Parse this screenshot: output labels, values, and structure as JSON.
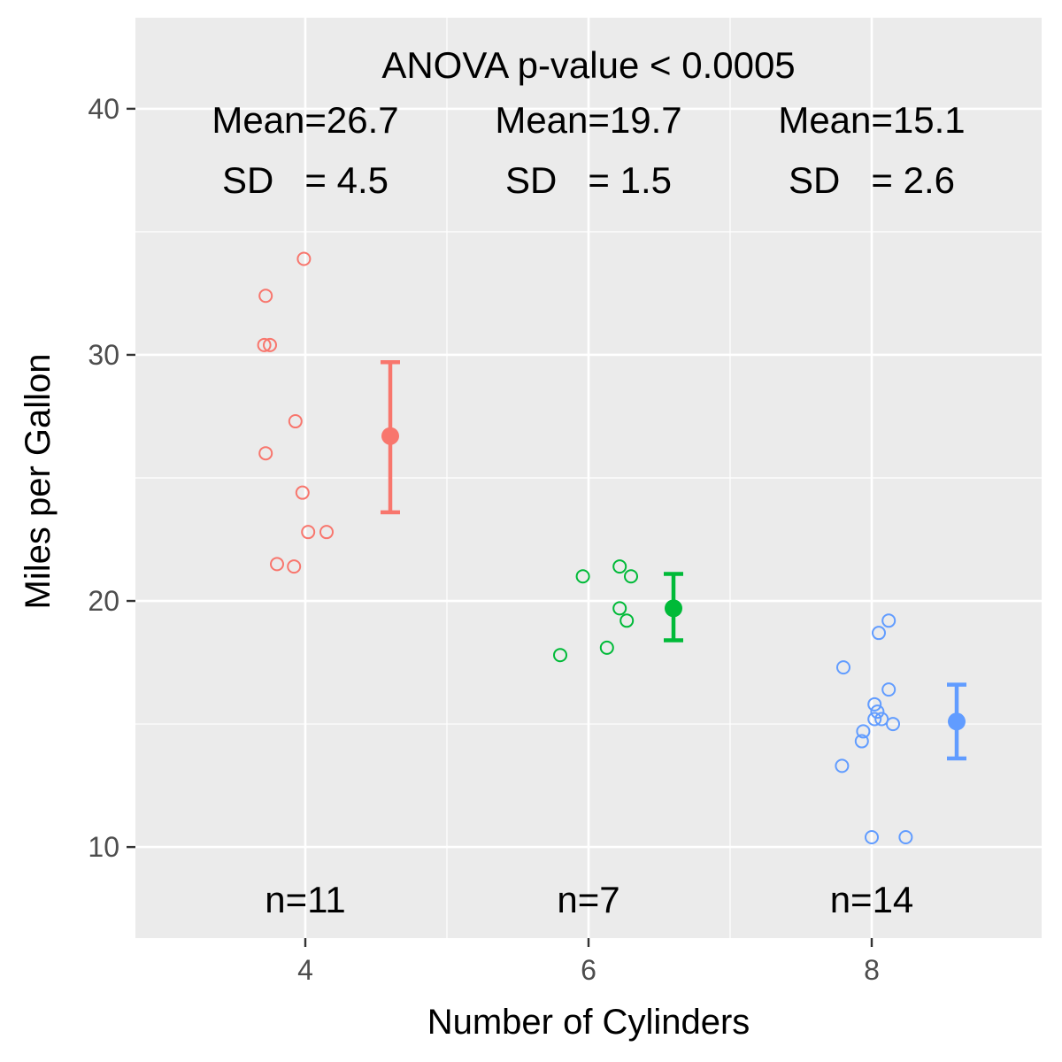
{
  "chart_data": {
    "type": "scatter",
    "title": "",
    "xlabel": "Number of Cylinders",
    "ylabel": "Miles per Gallon",
    "xlim": [
      2.8,
      9.2
    ],
    "ylim": [
      6.3,
      43.7
    ],
    "x_ticks": [
      4,
      6,
      8
    ],
    "y_ticks": [
      10,
      20,
      30,
      40
    ],
    "x_tick_labels": [
      "4",
      "6",
      "8"
    ],
    "y_tick_labels": [
      "10",
      "20",
      "30",
      "40"
    ],
    "grid": true,
    "legend": "none",
    "annotations": {
      "anova": "ANOVA p-value < 0.0005"
    },
    "groups": [
      {
        "name": "4",
        "color": "#F8766D",
        "x": 4,
        "mean": 26.7,
        "sd": 4.5,
        "mean_label": "Mean=26.7",
        "sd_label": "SD   = 4.5",
        "n_label": "n=11",
        "summary_x": 4.6,
        "ci": [
          23.6,
          29.7
        ],
        "points": [
          [
            3.99,
            33.9
          ],
          [
            3.72,
            32.4
          ],
          [
            3.71,
            30.4
          ],
          [
            3.75,
            30.4
          ],
          [
            3.93,
            27.3
          ],
          [
            3.72,
            26.0
          ],
          [
            3.98,
            24.4
          ],
          [
            4.02,
            22.8
          ],
          [
            4.15,
            22.8
          ],
          [
            3.8,
            21.5
          ],
          [
            3.92,
            21.4
          ]
        ]
      },
      {
        "name": "6",
        "color": "#00BA38",
        "x": 6,
        "mean": 19.7,
        "sd": 1.5,
        "mean_label": "Mean=19.7",
        "sd_label": "SD   = 1.5",
        "n_label": "n=7",
        "summary_x": 6.6,
        "ci": [
          18.4,
          21.1
        ],
        "points": [
          [
            6.22,
            21.4
          ],
          [
            5.96,
            21.0
          ],
          [
            6.3,
            21.0
          ],
          [
            6.22,
            19.7
          ],
          [
            6.27,
            19.2
          ],
          [
            6.13,
            18.1
          ],
          [
            5.8,
            17.8
          ]
        ]
      },
      {
        "name": "8",
        "color": "#619CFF",
        "x": 8,
        "mean": 15.1,
        "sd": 2.6,
        "mean_label": "Mean=15.1",
        "sd_label": "SD   = 2.6",
        "n_label": "n=14",
        "summary_x": 8.6,
        "ci": [
          13.6,
          16.6
        ],
        "points": [
          [
            8.12,
            19.2
          ],
          [
            8.05,
            18.7
          ],
          [
            7.8,
            17.3
          ],
          [
            8.12,
            16.4
          ],
          [
            8.02,
            15.8
          ],
          [
            8.04,
            15.5
          ],
          [
            8.02,
            15.2
          ],
          [
            8.07,
            15.2
          ],
          [
            8.15,
            15.0
          ],
          [
            7.94,
            14.7
          ],
          [
            7.93,
            14.3
          ],
          [
            7.79,
            13.3
          ],
          [
            8.0,
            10.4
          ],
          [
            8.24,
            10.4
          ]
        ]
      }
    ]
  }
}
